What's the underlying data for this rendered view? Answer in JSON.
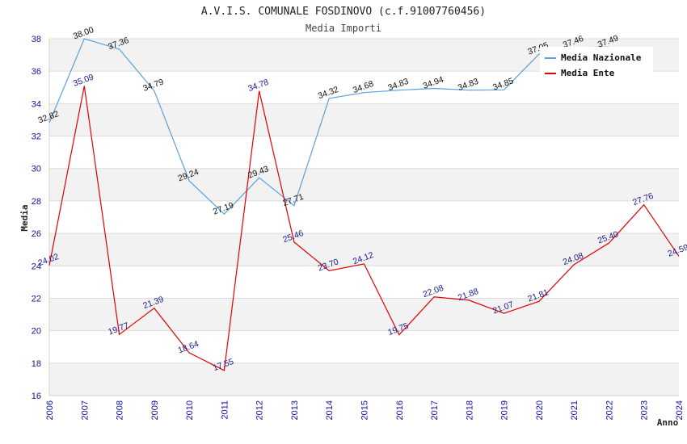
{
  "chart_data": {
    "type": "line",
    "title": "A.V.I.S. COMUNALE FOSDINOVO (c.f.91007760456)",
    "subtitle": "Media Importi",
    "xlabel": "Anno",
    "ylabel": "Media",
    "ylim": [
      16,
      38
    ],
    "yticks": [
      "16",
      "18",
      "20",
      "22",
      "24",
      "26",
      "28",
      "30",
      "32",
      "34",
      "36",
      "38"
    ],
    "categories": [
      "2006",
      "2007",
      "2008",
      "2009",
      "2010",
      "2011",
      "2012",
      "2013",
      "2014",
      "2015",
      "2016",
      "2017",
      "2018",
      "2019",
      "2020",
      "2021",
      "2022",
      "2023",
      "2024"
    ],
    "grid": true,
    "legend_position": "top-right",
    "series": [
      {
        "name": "Media Nazionale",
        "color": "#5aa0dc",
        "values": [
          32.82,
          38.0,
          37.36,
          34.79,
          29.24,
          27.19,
          29.43,
          27.71,
          34.32,
          34.68,
          34.83,
          34.94,
          34.83,
          34.85,
          37.05,
          37.46,
          37.49,
          null,
          null
        ],
        "labels": [
          "32.82",
          "38.00",
          "37.36",
          "34.79",
          "29.24",
          "27.19",
          "29.43",
          "27.71",
          "34.32",
          "34.68",
          "34.83",
          "34.94",
          "34.83",
          "34.85",
          "37.05",
          "37.46",
          "37.49",
          "",
          ""
        ]
      },
      {
        "name": "Media Ente",
        "color": "#e00000",
        "values": [
          24.02,
          35.09,
          19.77,
          21.39,
          18.64,
          17.55,
          34.78,
          25.46,
          23.7,
          24.12,
          19.75,
          22.08,
          21.88,
          21.07,
          21.81,
          24.08,
          25.4,
          27.76,
          24.59
        ],
        "labels": [
          "24.02",
          "35.09",
          "19.77",
          "21.39",
          "18.64",
          "17.55",
          "34.78",
          "25.46",
          "23.70",
          "24.12",
          "19.75",
          "22.08",
          "21.88",
          "21.07",
          "21.81",
          "24.08",
          "25.40",
          "27.76",
          "24.59"
        ]
      }
    ]
  }
}
